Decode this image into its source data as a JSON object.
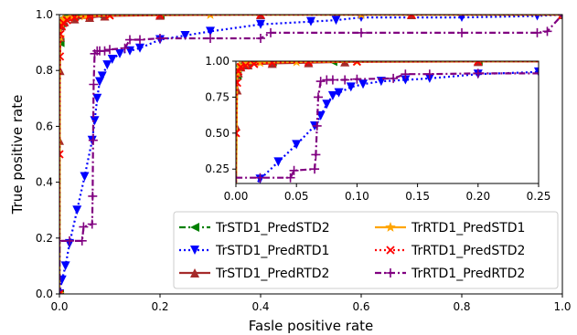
{
  "chart_data": [
    {
      "type": "line",
      "xlabel": "Fasle positive rate",
      "ylabel": "True positive rate",
      "xlim": [
        0,
        1
      ],
      "ylim": [
        0,
        1
      ],
      "xticks": [
        "0.0",
        "0.2",
        "0.4",
        "0.6",
        "0.8",
        "1.0"
      ],
      "yticks": [
        "0.0",
        "0.2",
        "0.4",
        "0.6",
        "0.8",
        "1.0"
      ],
      "grid": false,
      "legend_position": "lower-right",
      "series": [
        {
          "name": "TrSTD1_PredSTD2",
          "color": "#008000",
          "linestyle": "dashdot",
          "marker": "triangle-left",
          "x": [
            0.0,
            0.001,
            0.003,
            0.01,
            0.03,
            0.08,
            0.2,
            1.0
          ],
          "y": [
            0.0,
            0.9,
            0.97,
            0.99,
            0.995,
            0.998,
            1.0,
            1.0
          ]
        },
        {
          "name": "TrSTD1_PredRTD1",
          "color": "#0000ff",
          "linestyle": "dotted",
          "marker": "triangle-down",
          "x": [
            0.0,
            0.005,
            0.012,
            0.02,
            0.035,
            0.05,
            0.065,
            0.07,
            0.075,
            0.08,
            0.085,
            0.095,
            0.105,
            0.12,
            0.14,
            0.16,
            0.2,
            0.25,
            0.3,
            0.4,
            0.5,
            0.55,
            0.6,
            0.8,
            0.95,
            1.0
          ],
          "y": [
            0.0,
            0.05,
            0.1,
            0.18,
            0.3,
            0.42,
            0.55,
            0.62,
            0.7,
            0.76,
            0.78,
            0.82,
            0.84,
            0.86,
            0.87,
            0.88,
            0.91,
            0.925,
            0.94,
            0.965,
            0.975,
            0.98,
            0.99,
            0.99,
            0.995,
            1.0
          ]
        },
        {
          "name": "TrSTD1_PredRTD2",
          "color": "#a52a2a",
          "linestyle": "solid",
          "marker": "triangle-up",
          "x": [
            0.0,
            0.0,
            0.001,
            0.002,
            0.004,
            0.01,
            0.03,
            0.06,
            0.09,
            0.2,
            0.4,
            0.7,
            1.0
          ],
          "y": [
            0.0,
            0.55,
            0.8,
            0.92,
            0.96,
            0.975,
            0.985,
            0.99,
            0.995,
            0.998,
            1.0,
            1.0,
            1.0
          ]
        },
        {
          "name": "TrRTD1_PredSTD1",
          "color": "#ffa500",
          "linestyle": "solid",
          "marker": "star",
          "x": [
            0.0,
            0.001,
            0.003,
            0.008,
            0.02,
            0.05,
            0.1,
            0.3,
            0.6,
            1.0
          ],
          "y": [
            0.0,
            0.92,
            0.97,
            0.985,
            0.99,
            0.995,
            0.998,
            1.0,
            1.0,
            1.0
          ]
        },
        {
          "name": "TrRTD1_PredSTD2",
          "color": "#ff0000",
          "linestyle": "dotted",
          "marker": "x",
          "x": [
            0.0,
            0.0,
            0.001,
            0.002,
            0.004,
            0.008,
            0.015,
            0.03,
            0.06,
            0.1,
            0.2,
            0.4,
            0.7,
            1.0
          ],
          "y": [
            0.0,
            0.5,
            0.85,
            0.93,
            0.96,
            0.97,
            0.98,
            0.99,
            0.995,
            0.997,
            0.999,
            1.0,
            1.0,
            1.0
          ]
        },
        {
          "name": "TrRTD1_PredRTD2",
          "color": "#800080",
          "linestyle": "dashdot",
          "marker": "plus",
          "x": [
            0.0,
            0.0,
            0.02,
            0.045,
            0.048,
            0.065,
            0.066,
            0.067,
            0.068,
            0.07,
            0.075,
            0.08,
            0.09,
            0.1,
            0.13,
            0.14,
            0.16,
            0.2,
            0.3,
            0.4,
            0.42,
            0.6,
            0.8,
            0.95,
            0.97,
            1.0
          ],
          "y": [
            0.0,
            0.19,
            0.19,
            0.19,
            0.24,
            0.25,
            0.35,
            0.55,
            0.75,
            0.86,
            0.87,
            0.87,
            0.87,
            0.875,
            0.88,
            0.91,
            0.91,
            0.915,
            0.915,
            0.915,
            0.935,
            0.935,
            0.935,
            0.935,
            0.94,
            1.0
          ]
        }
      ]
    },
    {
      "type": "line",
      "role": "inset",
      "xlim": [
        0,
        0.25
      ],
      "ylim": [
        0.15,
        1.0
      ],
      "xticks": [
        "0.00",
        "0.05",
        "0.10",
        "0.15",
        "0.20",
        "0.25"
      ],
      "yticks": [
        "0.25",
        "0.50",
        "0.75",
        "1.00"
      ],
      "grid": false,
      "legend": "none"
    }
  ]
}
